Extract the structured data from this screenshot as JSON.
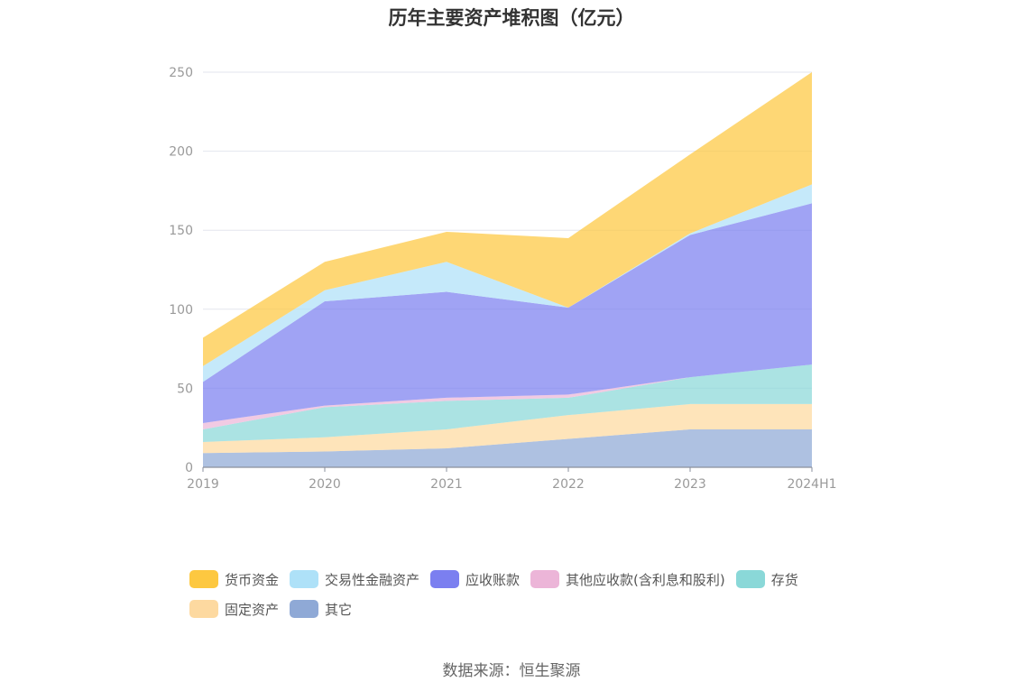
{
  "chart_data": {
    "type": "area",
    "stacked": true,
    "title": "历年主要资产堆积图（亿元）",
    "source": "数据来源：恒生聚源",
    "x": [
      "2019",
      "2020",
      "2021",
      "2022",
      "2023",
      "2024H1"
    ],
    "ylim": [
      0,
      250
    ],
    "yticks": [
      "0",
      "50",
      "100",
      "150",
      "200",
      "250"
    ],
    "grid": true,
    "legend_position": "bottom",
    "series": [
      {
        "name": "其它",
        "color": "#8fa9d6",
        "values": [
          9,
          10,
          12,
          18,
          24,
          24
        ]
      },
      {
        "name": "固定资产",
        "color": "#fdd9a0",
        "values": [
          7,
          9,
          12,
          15,
          16,
          16
        ]
      },
      {
        "name": "存货",
        "color": "#8ad8d8",
        "values": [
          8,
          19,
          18,
          11,
          17,
          25
        ]
      },
      {
        "name": "其他应收款(含利息和股利)",
        "color": "#ecb5d8",
        "values": [
          4,
          1,
          2,
          2,
          0,
          0
        ]
      },
      {
        "name": "应收账款",
        "color": "#7b7ff0",
        "values": [
          26,
          66,
          67,
          55,
          90,
          102
        ]
      },
      {
        "name": "交易性金融资产",
        "color": "#aee1f8",
        "values": [
          10,
          7,
          19,
          0,
          1,
          12
        ]
      },
      {
        "name": "货币资金",
        "color": "#fdc840",
        "values": [
          18,
          18,
          19,
          44,
          50,
          71
        ]
      }
    ],
    "legend_order": [
      "货币资金",
      "交易性金融资产",
      "应收账款",
      "其他应收款(含利息和股利)",
      "存货",
      "固定资产",
      "其它"
    ]
  }
}
